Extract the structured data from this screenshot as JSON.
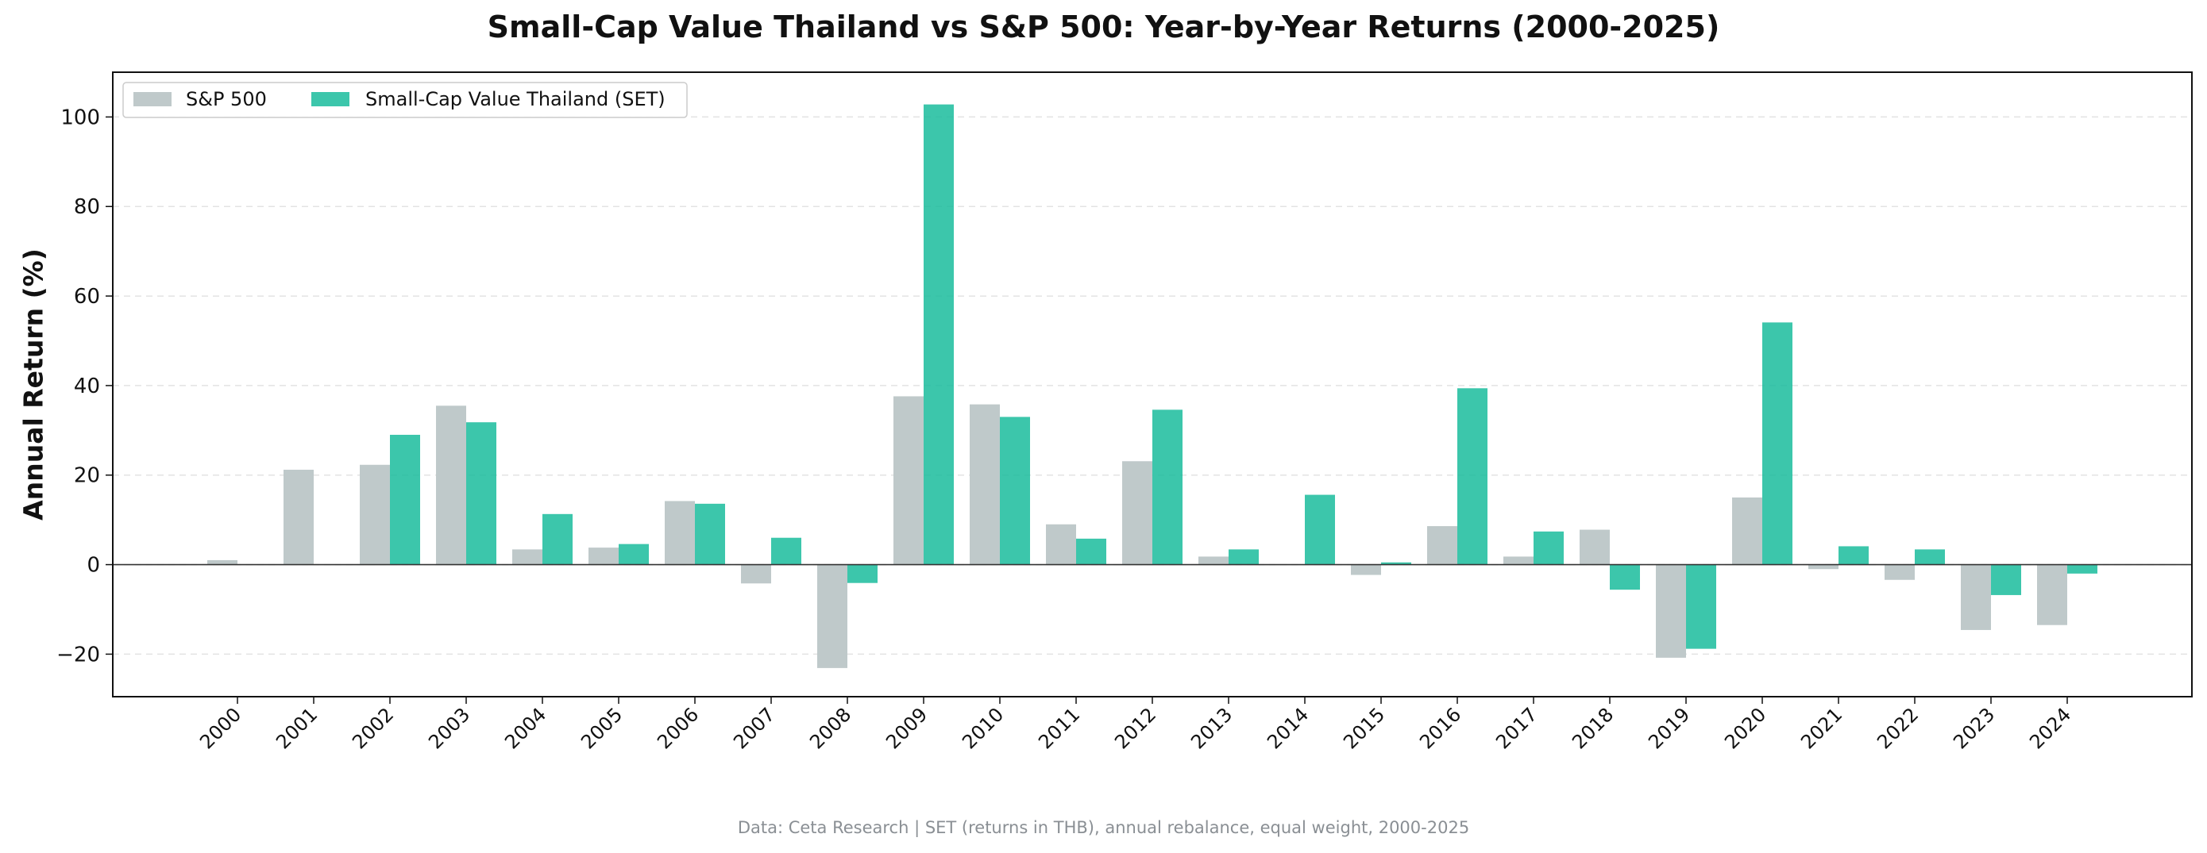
{
  "chart_data": {
    "type": "bar",
    "title": "Small-Cap Value Thailand vs S&P 500: Year-by-Year Returns (2000-2025)",
    "xlabel": "",
    "ylabel": "Annual Return (%)",
    "ylim": [
      -29.5,
      110
    ],
    "yticks": [
      -20,
      0,
      20,
      40,
      60,
      80,
      100
    ],
    "grid": "y-dashed",
    "legend_placement": "top-left",
    "categories": [
      "2000",
      "2001",
      "2002",
      "2003",
      "2004",
      "2005",
      "2006",
      "2007",
      "2008",
      "2009",
      "2010",
      "2011",
      "2012",
      "2013",
      "2014",
      "2015",
      "2016",
      "2017",
      "2018",
      "2019",
      "2020",
      "2021",
      "2022",
      "2023",
      "2024"
    ],
    "series": [
      {
        "name": "S&P 500",
        "color": "#bfc9ca",
        "values": [
          1,
          21.2,
          22.3,
          35.5,
          3.4,
          3.8,
          14.2,
          -4.2,
          -23.1,
          37.6,
          35.8,
          9.0,
          23.1,
          1.8,
          null,
          -2.3,
          8.6,
          1.8,
          7.8,
          -20.8,
          15.0,
          -1.0,
          -3.4,
          -14.6,
          -13.5
        ]
      },
      {
        "name": "Small-Cap Value Thailand (SET)",
        "color": "#1abc9c",
        "values": [
          null,
          null,
          29.0,
          31.8,
          11.3,
          4.6,
          13.6,
          6.0,
          -4.1,
          102.8,
          33.0,
          5.8,
          34.6,
          3.4,
          15.6,
          0.5,
          39.4,
          7.4,
          -5.6,
          -18.8,
          54.1,
          4.1,
          3.4,
          -6.8,
          -2.0
        ]
      }
    ]
  },
  "footer_note": "Data: Ceta Research | SET (returns in THB), annual rebalance, equal weight, 2000-2025"
}
